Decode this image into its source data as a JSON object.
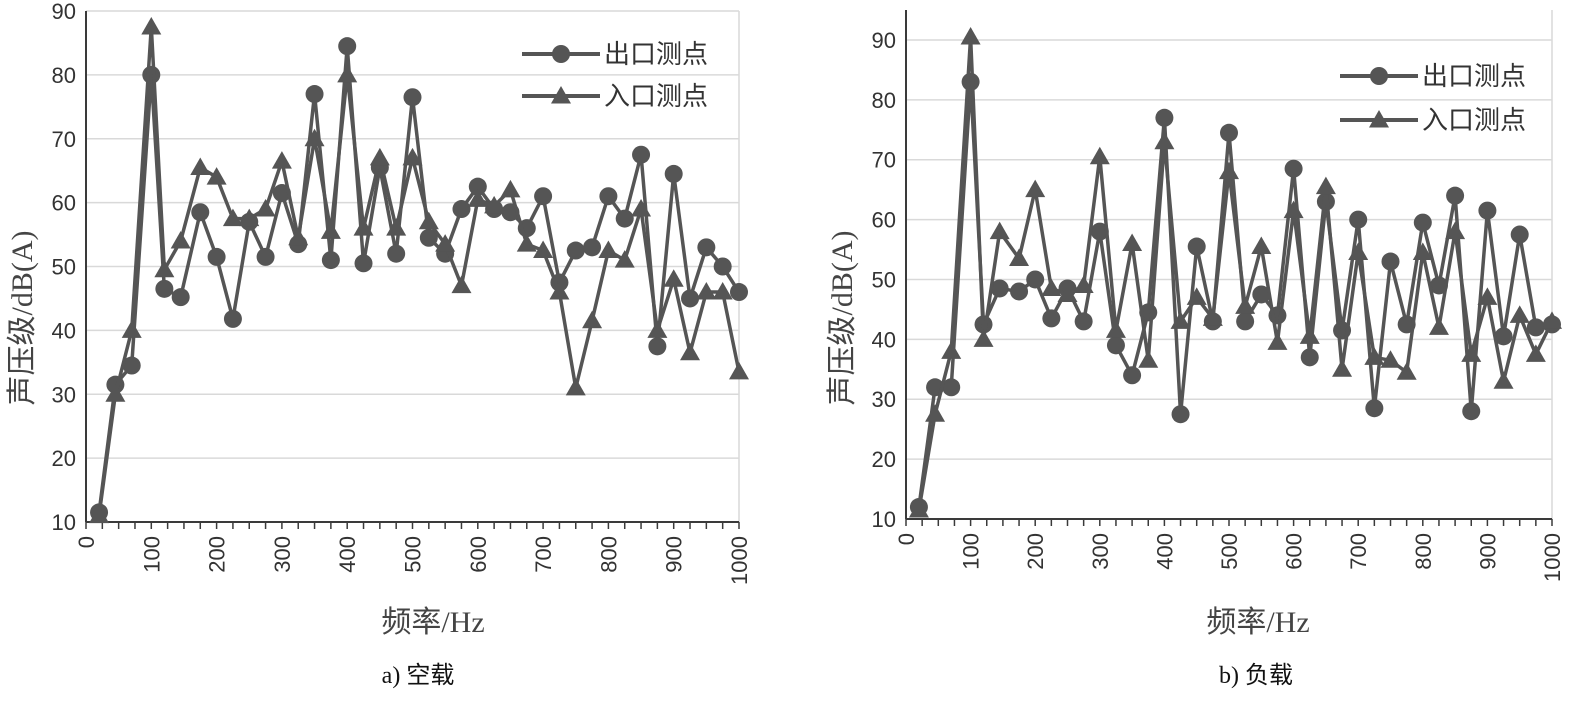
{
  "chart_data": [
    {
      "type": "line",
      "caption": "a) 空载",
      "xlabel": "频率/Hz",
      "ylabel": "声压级/dB(A)",
      "xlim": [
        0,
        1000
      ],
      "ylim": [
        10,
        90
      ],
      "x_ticks": [
        0,
        100,
        200,
        300,
        400,
        500,
        600,
        700,
        800,
        900,
        1000
      ],
      "y_ticks": [
        10,
        20,
        30,
        40,
        50,
        60,
        70,
        80,
        90
      ],
      "grid": true,
      "legend_position": "top-right",
      "x": [
        20,
        45,
        70,
        100,
        120,
        145,
        175,
        200,
        225,
        250,
        275,
        300,
        325,
        350,
        375,
        400,
        425,
        450,
        475,
        500,
        525,
        550,
        575,
        600,
        625,
        650,
        675,
        700,
        725,
        750,
        775,
        800,
        825,
        850,
        875,
        900,
        925,
        950,
        975,
        1000
      ],
      "series": [
        {
          "name": "出口测点",
          "marker": "circle",
          "values": [
            11.5,
            31.5,
            34.5,
            80,
            46.5,
            45.2,
            58.5,
            51.5,
            41.8,
            57,
            51.5,
            61.5,
            53.5,
            77,
            51,
            84.5,
            50.5,
            65.5,
            52,
            76.5,
            54.5,
            52,
            59,
            62.5,
            59,
            58.5,
            56,
            61,
            47.5,
            52.5,
            53,
            61,
            57.5,
            67.5,
            37.5,
            64.5,
            45,
            53,
            50,
            46
          ]
        },
        {
          "name": "入口测点",
          "marker": "triangle",
          "values": [
            11,
            30,
            40,
            87.5,
            49.5,
            54,
            65.5,
            64,
            57.5,
            57.5,
            59,
            66.5,
            54.5,
            70,
            55.5,
            80,
            56,
            67,
            56,
            67,
            57,
            53.5,
            47,
            60.5,
            59.5,
            62,
            53.5,
            52.5,
            46,
            31,
            41.5,
            52.5,
            51,
            59,
            40,
            48,
            36.5,
            46,
            46,
            33.5
          ]
        }
      ]
    },
    {
      "type": "line",
      "caption": "b) 负载",
      "xlabel": "频率/Hz",
      "ylabel": "声压级/dB(A)",
      "xlim": [
        0,
        1000
      ],
      "ylim": [
        10,
        95
      ],
      "x_ticks": [
        0,
        100,
        200,
        300,
        400,
        500,
        600,
        700,
        800,
        900,
        1000
      ],
      "y_ticks": [
        10,
        20,
        30,
        40,
        50,
        60,
        70,
        80,
        90
      ],
      "grid": true,
      "legend_position": "top-right",
      "x": [
        20,
        45,
        70,
        100,
        120,
        145,
        175,
        200,
        225,
        250,
        275,
        300,
        325,
        350,
        375,
        400,
        425,
        450,
        475,
        500,
        525,
        550,
        575,
        600,
        625,
        650,
        675,
        700,
        725,
        750,
        775,
        800,
        825,
        850,
        875,
        900,
        925,
        950,
        975,
        1000
      ],
      "series": [
        {
          "name": "出口测点",
          "marker": "circle",
          "values": [
            12,
            32,
            32,
            83,
            42.5,
            48.5,
            48,
            50,
            43.5,
            48.5,
            43,
            58,
            39,
            34,
            44.5,
            77,
            27.5,
            55.5,
            43,
            74.5,
            43,
            47.5,
            44,
            68.5,
            37,
            63,
            41.5,
            60,
            28.5,
            53,
            42.5,
            59.5,
            49,
            64,
            28,
            61.5,
            40.5,
            57.5,
            42,
            42.5
          ]
        },
        {
          "name": "入口测点",
          "marker": "triangle",
          "values": [
            11.5,
            27.5,
            38,
            90.5,
            40,
            58,
            53.5,
            65,
            48.5,
            47.5,
            49,
            70.5,
            41.5,
            56,
            36.5,
            73,
            43,
            47,
            43.5,
            68,
            45.5,
            55.5,
            39.5,
            61.5,
            40.5,
            65.5,
            35,
            54.5,
            37,
            36.5,
            34.5,
            54.5,
            42,
            58,
            37.5,
            47,
            33,
            44,
            37.5,
            43
          ]
        }
      ]
    }
  ]
}
